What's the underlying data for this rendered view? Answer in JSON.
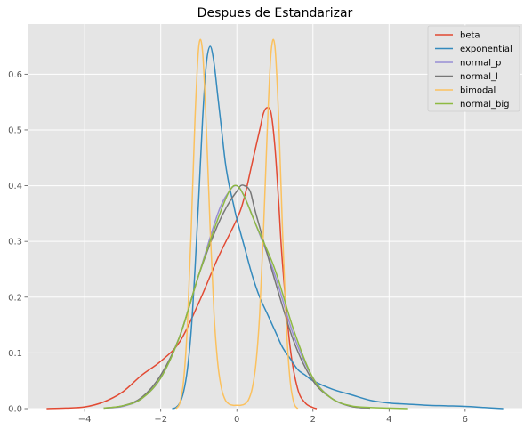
{
  "chart_data": {
    "type": "line",
    "title": "Despues de Estandarizar",
    "xlabel": "",
    "ylabel": "",
    "xlim": [
      -5.5,
      7.5
    ],
    "ylim": [
      0,
      0.69
    ],
    "x_ticks": [
      -4,
      -2,
      0,
      2,
      4,
      6
    ],
    "x_tick_labels": [
      "−4",
      "−2",
      "0",
      "2",
      "4",
      "6"
    ],
    "y_ticks": [
      0.0,
      0.1,
      0.2,
      0.3,
      0.4,
      0.5,
      0.6
    ],
    "y_tick_labels": [
      "0.0",
      "0.1",
      "0.2",
      "0.3",
      "0.4",
      "0.5",
      "0.6"
    ],
    "grid": true,
    "legend_position": "top-right",
    "background": "#e5e5e5",
    "grid_color": "#ffffff",
    "series": [
      {
        "name": "beta",
        "color": "#e24a33",
        "x": [
          -5.0,
          -4.5,
          -4.0,
          -3.5,
          -3.0,
          -2.5,
          -2.0,
          -1.5,
          -1.0,
          -0.5,
          0.0,
          0.2,
          0.4,
          0.6,
          0.7,
          0.8,
          0.9,
          1.0,
          1.1,
          1.2,
          1.4,
          1.6,
          1.8,
          2.0,
          2.1
        ],
        "y": [
          0.0,
          0.001,
          0.003,
          0.012,
          0.03,
          0.06,
          0.085,
          0.12,
          0.19,
          0.27,
          0.34,
          0.38,
          0.44,
          0.5,
          0.53,
          0.54,
          0.53,
          0.47,
          0.37,
          0.26,
          0.11,
          0.035,
          0.01,
          0.002,
          0.0
        ]
      },
      {
        "name": "exponential",
        "color": "#348abd",
        "x": [
          -1.7,
          -1.6,
          -1.5,
          -1.4,
          -1.3,
          -1.2,
          -1.1,
          -1.0,
          -0.9,
          -0.8,
          -0.7,
          -0.6,
          -0.5,
          -0.4,
          -0.3,
          -0.2,
          -0.1,
          0.0,
          0.2,
          0.4,
          0.6,
          0.8,
          1.0,
          1.2,
          1.4,
          1.6,
          1.8,
          2.0,
          2.5,
          3.0,
          3.5,
          4.0,
          4.5,
          5.0,
          5.5,
          6.0,
          6.5,
          7.0
        ],
        "y": [
          0.0,
          0.002,
          0.01,
          0.03,
          0.07,
          0.14,
          0.25,
          0.38,
          0.52,
          0.62,
          0.65,
          0.62,
          0.56,
          0.5,
          0.44,
          0.4,
          0.37,
          0.34,
          0.29,
          0.24,
          0.2,
          0.17,
          0.14,
          0.11,
          0.09,
          0.07,
          0.06,
          0.05,
          0.035,
          0.025,
          0.015,
          0.01,
          0.008,
          0.006,
          0.005,
          0.004,
          0.002,
          0.0
        ]
      },
      {
        "name": "normal_p",
        "color": "#988ed5",
        "x": [
          -3.5,
          -3.0,
          -2.5,
          -2.0,
          -1.5,
          -1.0,
          -0.5,
          -0.2,
          0.0,
          0.2,
          0.5,
          1.0,
          1.5,
          2.0,
          2.5,
          3.0,
          3.5
        ],
        "y": [
          0.001,
          0.004,
          0.018,
          0.055,
          0.13,
          0.24,
          0.35,
          0.39,
          0.4,
          0.38,
          0.33,
          0.24,
          0.13,
          0.055,
          0.018,
          0.004,
          0.001
        ]
      },
      {
        "name": "normal_l",
        "color": "#777777",
        "x": [
          -3.5,
          -3.0,
          -2.5,
          -2.0,
          -1.5,
          -1.0,
          -0.5,
          -0.2,
          0.0,
          0.1,
          0.2,
          0.35,
          0.5,
          1.0,
          1.5,
          2.0,
          2.5,
          3.0,
          3.5
        ],
        "y": [
          0.001,
          0.005,
          0.02,
          0.06,
          0.13,
          0.24,
          0.33,
          0.37,
          0.39,
          0.4,
          0.4,
          0.39,
          0.35,
          0.23,
          0.12,
          0.05,
          0.018,
          0.004,
          0.001
        ]
      },
      {
        "name": "bimodal",
        "color": "#fbc15e",
        "x": [
          -1.6,
          -1.5,
          -1.4,
          -1.3,
          -1.2,
          -1.1,
          -1.0,
          -0.9,
          -0.8,
          -0.7,
          -0.6,
          -0.5,
          -0.4,
          -0.3,
          -0.2,
          -0.1,
          0.0,
          0.1,
          0.2,
          0.3,
          0.4,
          0.5,
          0.6,
          0.7,
          0.8,
          0.9,
          1.0,
          1.1,
          1.2,
          1.3,
          1.4,
          1.5,
          1.6
        ],
        "y": [
          0.0,
          0.01,
          0.05,
          0.15,
          0.32,
          0.52,
          0.65,
          0.64,
          0.5,
          0.32,
          0.17,
          0.08,
          0.035,
          0.015,
          0.008,
          0.006,
          0.006,
          0.006,
          0.008,
          0.015,
          0.035,
          0.08,
          0.17,
          0.32,
          0.5,
          0.64,
          0.65,
          0.52,
          0.32,
          0.15,
          0.05,
          0.01,
          0.0
        ]
      },
      {
        "name": "normal_big",
        "color": "#8eba42",
        "x": [
          -3.5,
          -3.0,
          -2.5,
          -2.0,
          -1.5,
          -1.0,
          -0.5,
          -0.2,
          0.0,
          0.2,
          0.5,
          1.0,
          1.5,
          2.0,
          2.5,
          3.0,
          3.5,
          4.0,
          4.5
        ],
        "y": [
          0.001,
          0.005,
          0.018,
          0.055,
          0.13,
          0.24,
          0.34,
          0.39,
          0.4,
          0.38,
          0.33,
          0.25,
          0.14,
          0.055,
          0.018,
          0.005,
          0.002,
          0.001,
          0.0
        ]
      }
    ]
  }
}
